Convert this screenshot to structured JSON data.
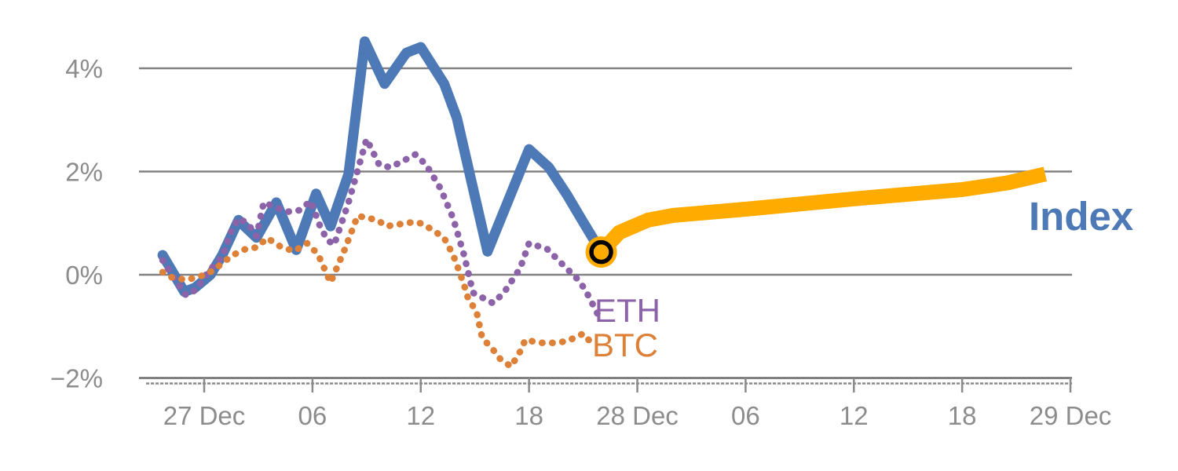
{
  "chart_data": {
    "type": "line",
    "title": "",
    "description": "Percent change of crypto Index vs ETH and BTC, 27-29 Dec",
    "background_color": "#ffffff",
    "grid_color": "#818181",
    "tick_label_color": "#8c8c8c",
    "x_axis": {
      "unit": "hours (t=0 at 27 Dec 00:00)",
      "range_t": [
        -3.6,
        48
      ],
      "ticks": [
        {
          "t": 0,
          "label": "27 Dec"
        },
        {
          "t": 6,
          "label": "06"
        },
        {
          "t": 12,
          "label": "12"
        },
        {
          "t": 18,
          "label": "18"
        },
        {
          "t": 24,
          "label": "28 Dec"
        },
        {
          "t": 30,
          "label": "06"
        },
        {
          "t": 36,
          "label": "12"
        },
        {
          "t": 42,
          "label": "18"
        },
        {
          "t": 48,
          "label": "29 Dec"
        }
      ]
    },
    "y_axis": {
      "unit": "percent change",
      "ylim": [
        -2,
        4.6
      ],
      "grid": true,
      "ticks": [
        {
          "v": 4,
          "label": "4%"
        },
        {
          "v": 2,
          "label": "2%"
        },
        {
          "v": 0,
          "label": "0%"
        },
        {
          "v": -2,
          "label": "−2%"
        }
      ]
    },
    "series": [
      {
        "name": "Index",
        "color": "#4d79b6",
        "style": "solid",
        "width": 13,
        "points": [
          [
            -2.3,
            0.38
          ],
          [
            -1.1,
            -0.33
          ],
          [
            -0.5,
            -0.25
          ],
          [
            0.35,
            0.0
          ],
          [
            1.0,
            0.38
          ],
          [
            1.9,
            1.06
          ],
          [
            2.2,
            0.95
          ],
          [
            2.9,
            0.72
          ],
          [
            4.0,
            1.4
          ],
          [
            5.1,
            0.48
          ],
          [
            6.2,
            1.57
          ],
          [
            7.0,
            0.94
          ],
          [
            8.0,
            1.95
          ],
          [
            8.9,
            4.52
          ],
          [
            10.0,
            3.7
          ],
          [
            11.2,
            4.3
          ],
          [
            12.0,
            4.41
          ],
          [
            13.3,
            3.7
          ],
          [
            14.0,
            3.04
          ],
          [
            15.7,
            0.45
          ],
          [
            18.0,
            2.43
          ],
          [
            19.1,
            2.08
          ],
          [
            20.1,
            1.55
          ],
          [
            21.0,
            1.02
          ],
          [
            22.0,
            0.44
          ]
        ]
      },
      {
        "name": "Index (projected)",
        "color": "#ffab00",
        "style": "solid",
        "width": 19,
        "points": [
          [
            22.0,
            0.44
          ],
          [
            23.0,
            0.82
          ],
          [
            24.6,
            1.06
          ],
          [
            26.0,
            1.15
          ],
          [
            30.0,
            1.27
          ],
          [
            36.0,
            1.47
          ],
          [
            42.0,
            1.65
          ],
          [
            44.5,
            1.78
          ],
          [
            46.6,
            1.95
          ]
        ]
      },
      {
        "name": "ETH",
        "color": "#8c63a9",
        "style": "dotted",
        "width": 8.5,
        "points": [
          [
            -2.3,
            0.28
          ],
          [
            -1.6,
            -0.1
          ],
          [
            -1.0,
            -0.4
          ],
          [
            -0.4,
            -0.28
          ],
          [
            0.2,
            0.05
          ],
          [
            1.0,
            0.35
          ],
          [
            1.5,
            0.84
          ],
          [
            1.9,
            1.09
          ],
          [
            2.4,
            1.0
          ],
          [
            2.9,
            0.75
          ],
          [
            3.3,
            1.4
          ],
          [
            4.6,
            1.22
          ],
          [
            5.3,
            1.25
          ],
          [
            5.9,
            1.43
          ],
          [
            6.4,
            0.96
          ],
          [
            6.8,
            0.68
          ],
          [
            7.2,
            0.58
          ],
          [
            8.0,
            1.4
          ],
          [
            9.0,
            2.63
          ],
          [
            9.7,
            2.13
          ],
          [
            10.3,
            2.08
          ],
          [
            11.0,
            2.2
          ],
          [
            11.7,
            2.33
          ],
          [
            12.3,
            2.13
          ],
          [
            13.1,
            1.67
          ],
          [
            13.8,
            1.09
          ],
          [
            14.4,
            0.38
          ],
          [
            14.9,
            -0.35
          ],
          [
            16.0,
            -0.55
          ],
          [
            16.6,
            -0.35
          ],
          [
            17.5,
            0.12
          ],
          [
            18.0,
            0.61
          ],
          [
            19.0,
            0.5
          ],
          [
            20.0,
            0.15
          ],
          [
            20.6,
            -0.05
          ],
          [
            21.1,
            -0.28
          ],
          [
            21.8,
            -0.76
          ]
        ]
      },
      {
        "name": "BTC",
        "color": "#dd8038",
        "style": "dotted",
        "width": 8.5,
        "points": [
          [
            -2.3,
            0.05
          ],
          [
            -1.8,
            -0.05
          ],
          [
            -1.0,
            -0.1
          ],
          [
            -0.2,
            -0.03
          ],
          [
            0.5,
            0.08
          ],
          [
            1.2,
            0.28
          ],
          [
            1.7,
            0.4
          ],
          [
            2.3,
            0.5
          ],
          [
            2.9,
            0.53
          ],
          [
            3.5,
            0.71
          ],
          [
            4.3,
            0.53
          ],
          [
            5.0,
            0.46
          ],
          [
            5.7,
            0.61
          ],
          [
            6.3,
            0.4
          ],
          [
            7.0,
            -0.15
          ],
          [
            7.8,
            0.5
          ],
          [
            8.5,
            1.14
          ],
          [
            9.6,
            1.06
          ],
          [
            10.1,
            0.94
          ],
          [
            11.6,
            1.02
          ],
          [
            12.1,
            0.99
          ],
          [
            12.9,
            0.81
          ],
          [
            13.3,
            0.71
          ],
          [
            13.8,
            0.38
          ],
          [
            14.1,
            0.1
          ],
          [
            14.4,
            -0.2
          ],
          [
            14.6,
            -0.43
          ],
          [
            15.1,
            -0.73
          ],
          [
            15.4,
            -1.22
          ],
          [
            16.0,
            -1.45
          ],
          [
            16.4,
            -1.63
          ],
          [
            17.0,
            -1.78
          ],
          [
            17.5,
            -1.49
          ],
          [
            17.8,
            -1.26
          ],
          [
            18.6,
            -1.32
          ],
          [
            19.3,
            -1.32
          ],
          [
            20.1,
            -1.29
          ],
          [
            21.0,
            -1.14
          ],
          [
            21.5,
            -1.34
          ]
        ]
      }
    ],
    "marker": {
      "t": 22.0,
      "v": 0.44,
      "fill": "#ffab00",
      "ring_color": "#000000"
    },
    "legend": {
      "position": "end-of-line annotations",
      "entries": [
        "Index",
        "ETH",
        "BTC"
      ]
    }
  }
}
